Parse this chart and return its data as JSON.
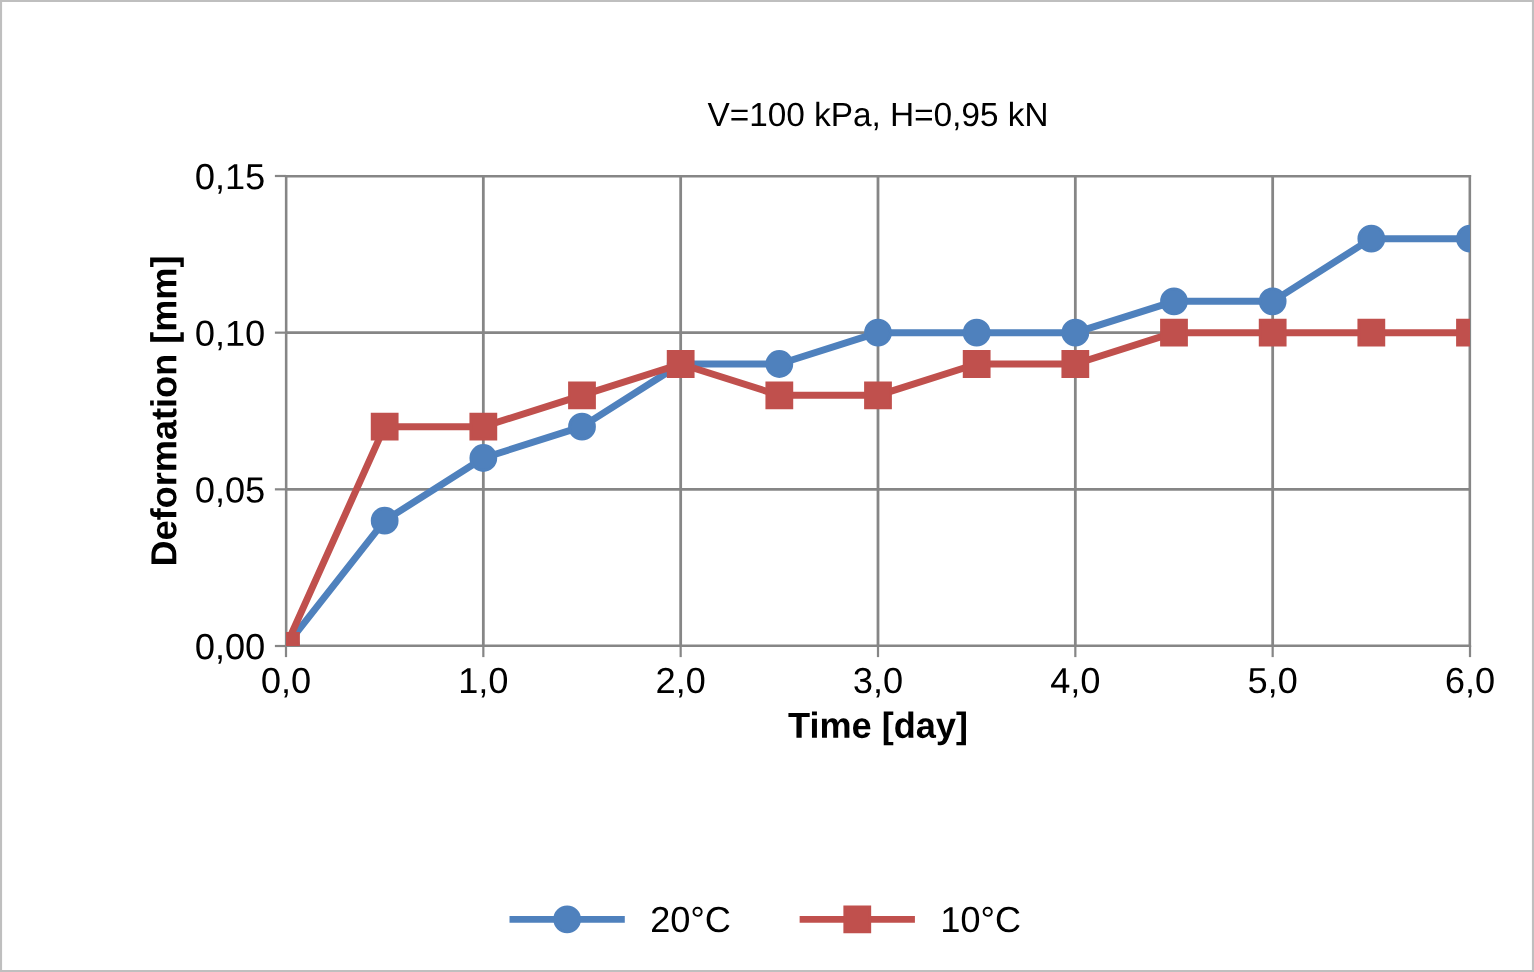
{
  "chart_data": {
    "type": "line",
    "title": "V=100 kPa, H=0,95 kN",
    "xlabel": "Time [day]",
    "ylabel": "Deformation [mm]",
    "x": [
      0,
      0.5,
      1,
      1.5,
      2,
      2.5,
      3,
      3.5,
      4,
      4.5,
      5,
      5.5,
      6
    ],
    "series": [
      {
        "name": "20°C",
        "color": "#4f81bd",
        "marker": "circle",
        "values": [
          0,
          0.04,
          0.06,
          0.07,
          0.09,
          0.09,
          0.1,
          0.1,
          0.1,
          0.11,
          0.11,
          0.13,
          0.13
        ]
      },
      {
        "name": "10°C",
        "color": "#c0504d",
        "marker": "square",
        "values": [
          0,
          0.07,
          0.07,
          0.08,
          0.09,
          0.08,
          0.08,
          0.09,
          0.09,
          0.1,
          0.1,
          0.1,
          0.1
        ]
      }
    ],
    "xlim": [
      0,
      6
    ],
    "ylim": [
      0,
      0.15
    ],
    "xticks": [
      {
        "value": 0,
        "label": "0,0"
      },
      {
        "value": 1,
        "label": "1,0"
      },
      {
        "value": 2,
        "label": "2,0"
      },
      {
        "value": 3,
        "label": "3,0"
      },
      {
        "value": 4,
        "label": "4,0"
      },
      {
        "value": 5,
        "label": "5,0"
      },
      {
        "value": 6,
        "label": "6,0"
      }
    ],
    "yticks": [
      {
        "value": 0,
        "label": "0,00"
      },
      {
        "value": 0.05,
        "label": "0,05"
      },
      {
        "value": 0.1,
        "label": "0,10"
      },
      {
        "value": 0.15,
        "label": "0,15"
      }
    ],
    "grid": true,
    "legend": "bottom",
    "line_style": "solid"
  }
}
